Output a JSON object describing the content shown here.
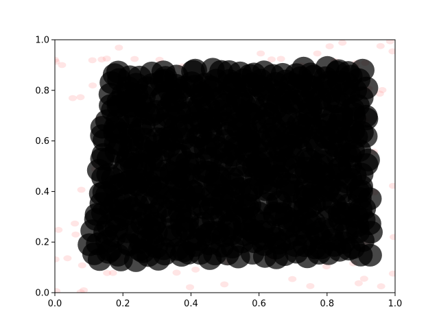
{
  "chart_data": {
    "type": "scatter",
    "title": "",
    "xlabel": "",
    "ylabel": "",
    "xlim": [
      0.0,
      1.0
    ],
    "ylim": [
      0.0,
      1.0
    ],
    "grid": false,
    "x_ticks": [
      "0.0",
      "0.2",
      "0.4",
      "0.6",
      "0.8",
      "1.0"
    ],
    "y_ticks": [
      "0.0",
      "0.2",
      "0.4",
      "0.6",
      "0.8",
      "1.0"
    ],
    "series": [
      {
        "marker": "ellipse",
        "color": "#000000",
        "alpha": 0.72,
        "marker_radius_data": [
          0.035,
          0.045
        ],
        "grid_x": {
          "start": 0.12,
          "end": 0.94,
          "step": 0.032
        },
        "grid_y": {
          "start": 0.12,
          "end": 0.92,
          "step": 0.038
        },
        "region": {
          "bottom_left": [
            0.11,
            0.14
          ],
          "bottom_right": [
            0.92,
            0.16
          ],
          "top_right": [
            0.9,
            0.88
          ],
          "top_left": [
            0.17,
            0.86
          ]
        }
      },
      {
        "marker": "ellipse",
        "color": "#ff9999",
        "alpha": 0.25,
        "marker_radius_data": [
          0.012,
          0.012
        ],
        "scattered": true,
        "count": 160,
        "range_x": [
          0.0,
          1.0
        ],
        "range_y": [
          0.0,
          1.0
        ]
      }
    ]
  }
}
